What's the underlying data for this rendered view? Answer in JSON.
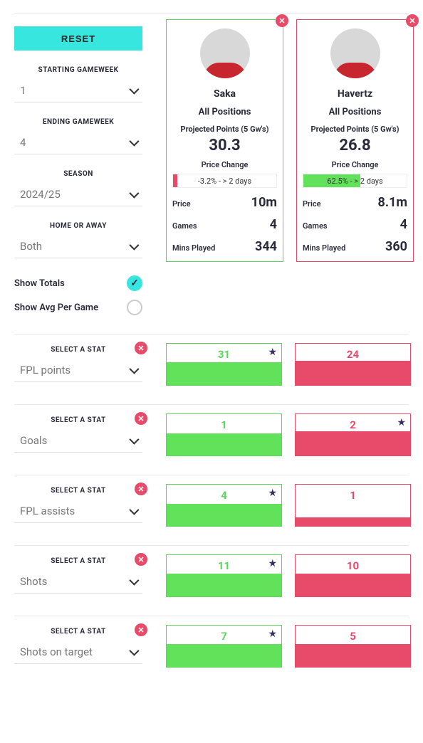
{
  "colors": {
    "accent": "#38e6e0",
    "green": "#5ad65a",
    "red": "#e84a6a",
    "fill_green": "#62e25a",
    "fill_red": "#e84a6a"
  },
  "filters": {
    "reset_label": "RESET",
    "starting_gw_label": "STARTING GAMEWEEK",
    "starting_gw_value": "1",
    "ending_gw_label": "ENDING GAMEWEEK",
    "ending_gw_value": "4",
    "season_label": "SEASON",
    "season_value": "2024/25",
    "home_away_label": "HOME OR AWAY",
    "home_away_value": "Both",
    "show_totals_label": "Show Totals",
    "show_totals_on": true,
    "show_avg_label": "Show Avg Per Game",
    "show_avg_on": false
  },
  "players": {
    "a": {
      "name": "Saka",
      "positions": "All Positions",
      "projected_label": "Projected Points (5 Gw's)",
      "projected_pts": "30.3",
      "price_change_label": "Price Change",
      "price_change_text": "-3.2% - > 2 days",
      "price_change_color": "#e84a6a",
      "price_change_width": "4%",
      "price_label": "Price",
      "price": "10m",
      "games_label": "Games",
      "games": "4",
      "mins_label": "Mins Played",
      "mins": "344",
      "border": "#5ad65a"
    },
    "b": {
      "name": "Havertz",
      "positions": "All Positions",
      "projected_label": "Projected Points (5 Gw's)",
      "projected_pts": "26.8",
      "price_change_label": "Price Change",
      "price_change_text": "62.5% - > 2 days",
      "price_change_color": "#62e25a",
      "price_change_width": "55%",
      "price_label": "Price",
      "price": "8.1m",
      "games_label": "Games",
      "games": "4",
      "mins_label": "Mins Played",
      "mins": "360",
      "border": "#e84a6a"
    }
  },
  "stats": [
    {
      "label": "SELECT A STAT",
      "name": "FPL points",
      "a": {
        "val": "31",
        "fill_pct": 55,
        "star": true
      },
      "b": {
        "val": "24",
        "fill_pct": 58,
        "star": false
      }
    },
    {
      "label": "SELECT A STAT",
      "name": "Goals",
      "a": {
        "val": "1",
        "fill_pct": 54,
        "star": false
      },
      "b": {
        "val": "2",
        "fill_pct": 58,
        "star": true
      }
    },
    {
      "label": "SELECT A STAT",
      "name": "FPL assists",
      "a": {
        "val": "4",
        "fill_pct": 54,
        "star": true
      },
      "b": {
        "val": "1",
        "fill_pct": 20,
        "star": false
      }
    },
    {
      "label": "SELECT A STAT",
      "name": "Shots",
      "a": {
        "val": "11",
        "fill_pct": 55,
        "star": true
      },
      "b": {
        "val": "10",
        "fill_pct": 55,
        "star": false
      }
    },
    {
      "label": "SELECT A STAT",
      "name": "Shots on target",
      "a": {
        "val": "7",
        "fill_pct": 55,
        "star": true
      },
      "b": {
        "val": "5",
        "fill_pct": 55,
        "star": false
      }
    }
  ]
}
